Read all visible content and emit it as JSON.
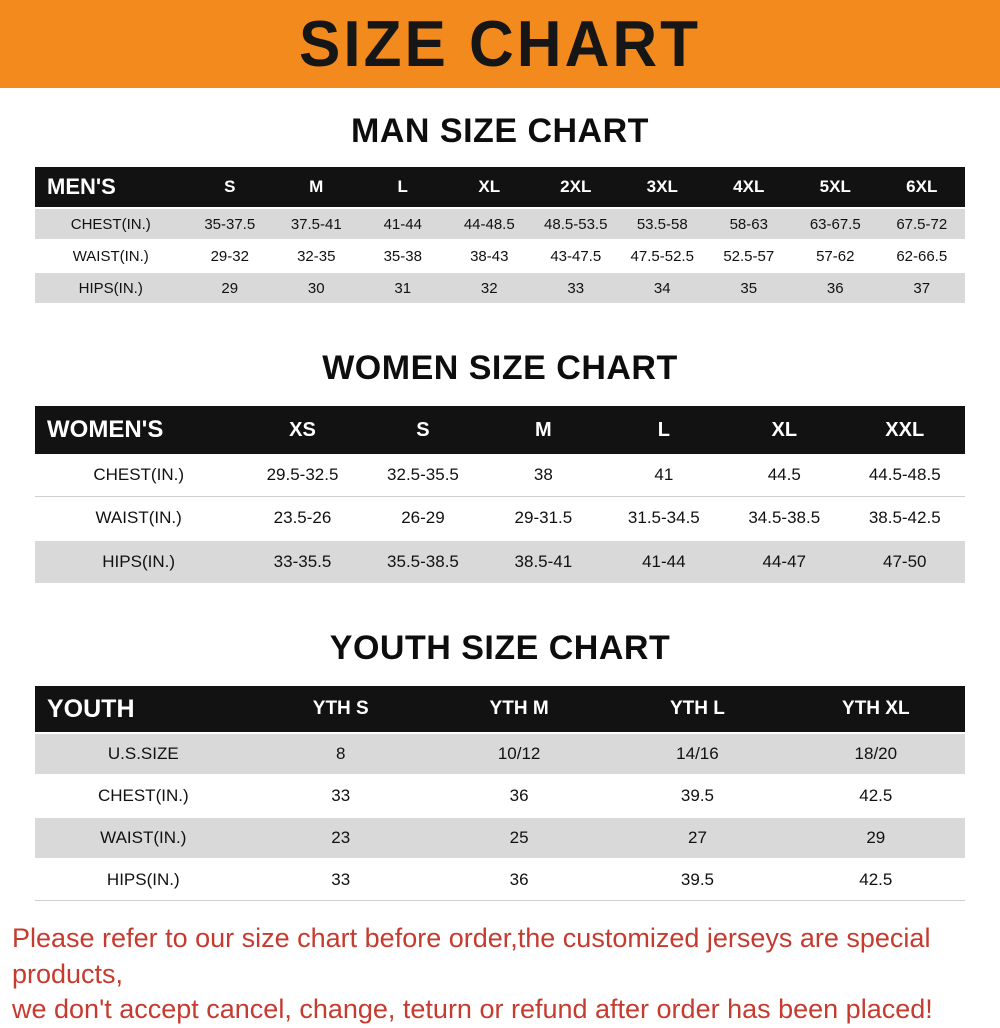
{
  "banner": {
    "title": "SIZE CHART"
  },
  "colors": {
    "banner_bg": "#F28A1E",
    "header_row_bg": "#121212",
    "row_gray": "#D9D9D9",
    "footer_text": "#C63B2F"
  },
  "tables": [
    {
      "title": "MAN SIZE CHART",
      "header_label": "MEN'S",
      "sizes": [
        "S",
        "M",
        "L",
        "XL",
        "2XL",
        "3XL",
        "4XL",
        "5XL",
        "6XL"
      ],
      "rows": [
        {
          "label": "CHEST(IN.)",
          "values": [
            "35-37.5",
            "37.5-41",
            "41-44",
            "44-48.5",
            "48.5-53.5",
            "53.5-58",
            "58-63",
            "63-67.5",
            "67.5-72"
          ]
        },
        {
          "label": "WAIST(IN.)",
          "values": [
            "29-32",
            "32-35",
            "35-38",
            "38-43",
            "43-47.5",
            "47.5-52.5",
            "52.5-57",
            "57-62",
            "62-66.5"
          ]
        },
        {
          "label": "HIPS(IN.)",
          "values": [
            "29",
            "30",
            "31",
            "32",
            "33",
            "34",
            "35",
            "36",
            "37"
          ]
        }
      ],
      "row_shading": [
        "gray",
        "white",
        "gray"
      ]
    },
    {
      "title": "WOMEN SIZE CHART",
      "header_label": "WOMEN'S",
      "sizes": [
        "XS",
        "S",
        "M",
        "L",
        "XL",
        "XXL"
      ],
      "rows": [
        {
          "label": "CHEST(IN.)",
          "values": [
            "29.5-32.5",
            "32.5-35.5",
            "38",
            "41",
            "44.5",
            "44.5-48.5"
          ]
        },
        {
          "label": "WAIST(IN.)",
          "values": [
            "23.5-26",
            "26-29",
            "29-31.5",
            "31.5-34.5",
            "34.5-38.5",
            "38.5-42.5"
          ]
        },
        {
          "label": "HIPS(IN.)",
          "values": [
            "33-35.5",
            "35.5-38.5",
            "38.5-41",
            "41-44",
            "44-47",
            "47-50"
          ]
        }
      ],
      "row_shading": [
        "white",
        "white",
        "gray"
      ]
    },
    {
      "title": "YOUTH SIZE CHART",
      "header_label": "YOUTH",
      "sizes": [
        "YTH S",
        "YTH M",
        "YTH L",
        "YTH XL"
      ],
      "rows": [
        {
          "label": "U.S.SIZE",
          "values": [
            "8",
            "10/12",
            "14/16",
            "18/20"
          ]
        },
        {
          "label": "CHEST(IN.)",
          "values": [
            "33",
            "36",
            "39.5",
            "42.5"
          ]
        },
        {
          "label": "WAIST(IN.)",
          "values": [
            "23",
            "25",
            "27",
            "29"
          ]
        },
        {
          "label": "HIPS(IN.)",
          "values": [
            "33",
            "36",
            "39.5",
            "42.5"
          ]
        }
      ],
      "row_shading": [
        "gray",
        "white",
        "gray",
        "white"
      ]
    }
  ],
  "footer": {
    "line1": "Please refer to our size chart before order,the customized jerseys are special products,",
    "line2": "we don't accept cancel, change, teturn or refund after order has been placed!"
  }
}
